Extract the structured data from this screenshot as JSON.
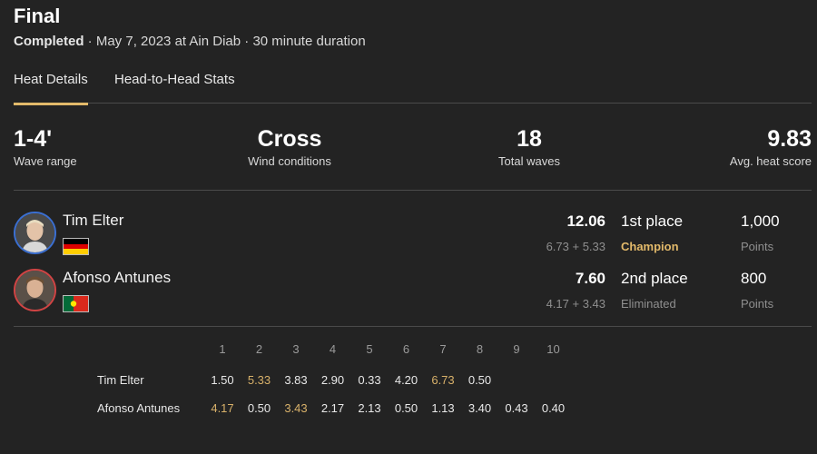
{
  "header": {
    "title": "Final",
    "status": "Completed",
    "details": " · May 7, 2023 at Ain Diab · 30 minute duration"
  },
  "tabs": [
    {
      "label": "Heat Details",
      "active": true
    },
    {
      "label": "Head-to-Head Stats",
      "active": false
    }
  ],
  "stats": [
    {
      "value": "1-4'",
      "label": "Wave range"
    },
    {
      "value": "Cross",
      "label": "Wind conditions"
    },
    {
      "value": "18",
      "label": "Total waves"
    },
    {
      "value": "9.83",
      "label": "Avg. heat score"
    }
  ],
  "competitors": [
    {
      "name": "Tim Elter",
      "flag": "germany-flag",
      "avatar_ring": "#3b6fd1",
      "total": "12.06",
      "breakdown": "6.73 + 5.33",
      "place": "1st place",
      "result": "Champion",
      "points": "1,000",
      "points_label": "Points"
    },
    {
      "name": "Afonso Antunes",
      "flag": "portugal-flag",
      "avatar_ring": "#d04444",
      "total": "7.60",
      "breakdown": "4.17 + 3.43",
      "place": "2nd place",
      "result": "Eliminated",
      "points": "800",
      "points_label": "Points"
    }
  ],
  "wave_grid": {
    "headers": [
      "1",
      "2",
      "3",
      "4",
      "5",
      "6",
      "7",
      "8",
      "9",
      "10"
    ],
    "rows": [
      {
        "name": "Tim Elter",
        "scores": [
          "1.50",
          "5.33",
          "3.83",
          "2.90",
          "0.33",
          "4.20",
          "6.73",
          "0.50"
        ],
        "counted": [
          1,
          6
        ]
      },
      {
        "name": "Afonso Antunes",
        "scores": [
          "4.17",
          "0.50",
          "3.43",
          "2.17",
          "2.13",
          "0.50",
          "1.13",
          "3.40",
          "0.43",
          "0.40"
        ],
        "counted": [
          0,
          2
        ]
      }
    ]
  },
  "colors": {
    "background": "#232323",
    "accent_gold": "#e2b96a",
    "counted_score": "#d8b16a",
    "muted": "#8f8f8f"
  }
}
